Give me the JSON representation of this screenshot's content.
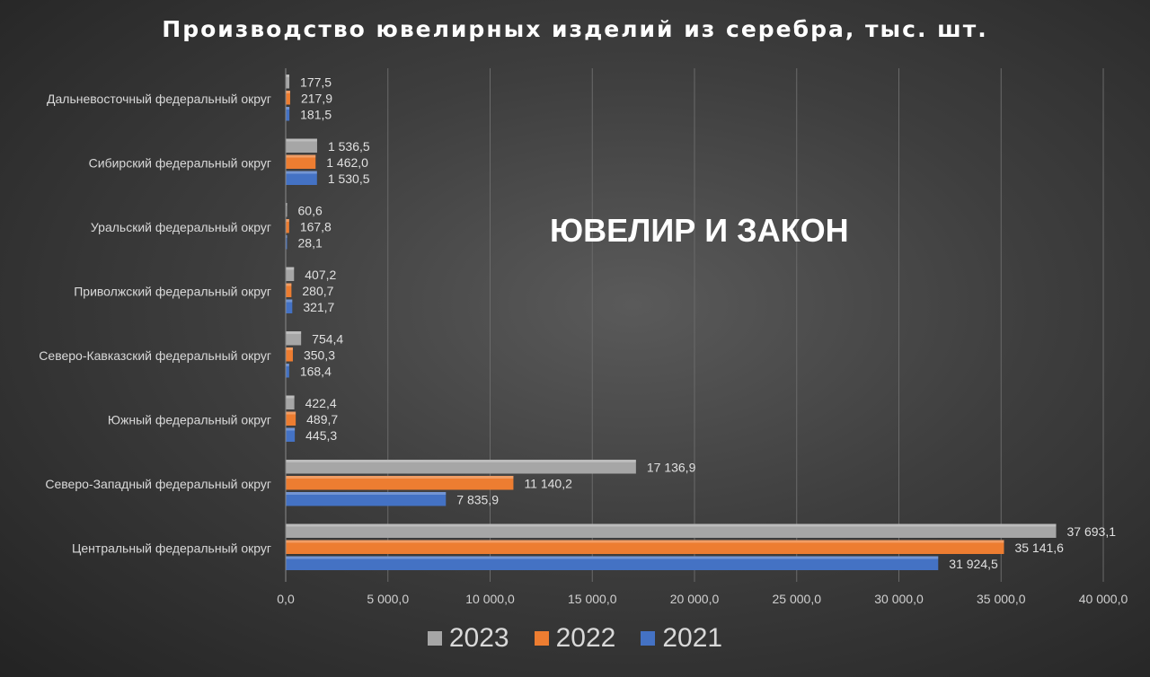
{
  "chart_data": {
    "type": "bar",
    "orientation": "horizontal",
    "title": "Производство ювелирных изделий из серебра, тыс. шт.",
    "categories": [
      "Дальневосточный федеральный округ",
      "Сибирский федеральный округ",
      "Уральский федеральный округ",
      "Приволжский федеральный округ",
      "Северо-Кавказский федеральный округ",
      "Южный федеральный округ",
      "Северо-Западный федеральный округ",
      "Центральный федеральный округ"
    ],
    "series": [
      {
        "name": "2023",
        "color": "#a6a6a6",
        "values": [
          177.5,
          1536.5,
          60.6,
          407.2,
          754.4,
          422.4,
          17136.9,
          37693.1
        ],
        "labels": [
          "177,5",
          "1 536,5",
          "60,6",
          "407,2",
          "754,4",
          "422,4",
          "17 136,9",
          "37 693,1"
        ]
      },
      {
        "name": "2022",
        "color": "#ed7d31",
        "values": [
          217.9,
          1462.0,
          167.8,
          280.7,
          350.3,
          489.7,
          11140.2,
          35141.6
        ],
        "labels": [
          "217,9",
          "1 462,0",
          "167,8",
          "280,7",
          "350,3",
          "489,7",
          "11 140,2",
          "35 141,6"
        ]
      },
      {
        "name": "2021",
        "color": "#4472c4",
        "values": [
          181.5,
          1530.5,
          28.1,
          321.7,
          168.4,
          445.3,
          7835.9,
          31924.5
        ],
        "labels": [
          "181,5",
          "1 530,5",
          "28,1",
          "321,7",
          "168,4",
          "445,3",
          "7 835,9",
          "31 924,5"
        ]
      }
    ],
    "xlim": [
      0,
      40000
    ],
    "xticks": [
      0,
      5000,
      10000,
      15000,
      20000,
      25000,
      30000,
      35000,
      40000
    ],
    "xtick_labels": [
      "0,0",
      "5 000,0",
      "10 000,0",
      "15 000,0",
      "20 000,0",
      "25 000,0",
      "30 000,0",
      "35 000,0",
      "40 000,0"
    ],
    "grid": true,
    "legend_position": "bottom"
  },
  "watermark": "ЮВЕЛИР И ЗАКОН"
}
